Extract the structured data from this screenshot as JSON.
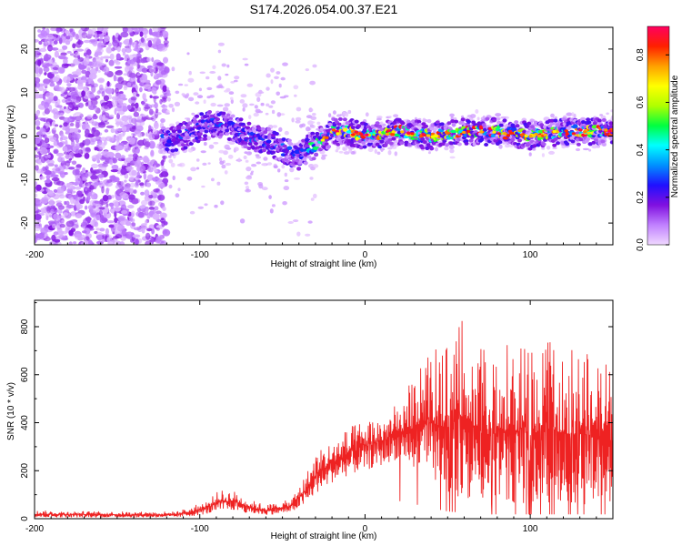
{
  "title": "S174.2026.054.00.37.E21",
  "chart_data": [
    {
      "type": "heatmap",
      "xlabel": "Height of straight line (km)",
      "ylabel": "Frequency (Hz)",
      "xlim": [
        -200,
        150
      ],
      "ylim": [
        -25,
        25
      ],
      "xticks": [
        -200,
        -100,
        0,
        100
      ],
      "yticks": [
        -20,
        -10,
        0,
        10,
        20
      ],
      "colorbar": {
        "label": "Normalized spectral amplitude",
        "range": [
          0,
          0.92
        ],
        "ticks": [
          0.0,
          0.2,
          0.4,
          0.6,
          0.8
        ],
        "colormap": [
          "#f0d8ff",
          "#c080ff",
          "#8010e0",
          "#2010ff",
          "#0090ff",
          "#00ffff",
          "#00ff40",
          "#b0ff00",
          "#ffff00",
          "#ffa000",
          "#ff2000",
          "#ff0060"
        ]
      },
      "ridge": {
        "x": [
          -120,
          -110,
          -100,
          -90,
          -80,
          -70,
          -60,
          -50,
          -40,
          -35,
          -30,
          -20,
          -10,
          0,
          20,
          40,
          60,
          80,
          100,
          120,
          150
        ],
        "y": [
          -1,
          0,
          2,
          3,
          2,
          0,
          -1,
          -3,
          -5,
          -3,
          -2,
          1,
          1,
          0,
          1,
          0,
          1,
          1,
          0,
          1,
          1
        ]
      }
    },
    {
      "type": "line",
      "xlabel": "Height of straight line (km)",
      "ylabel": "SNR (10 * v/v)",
      "xlim": [
        -200,
        150
      ],
      "ylim": [
        0,
        910
      ],
      "xticks": [
        -200,
        -100,
        0,
        100
      ],
      "yticks": [
        0,
        200,
        400,
        600,
        800
      ],
      "series": [
        {
          "name": "SNR",
          "color": "#ee2222",
          "envelope_x": [
            -200,
            -150,
            -115,
            -105,
            -95,
            -88,
            -80,
            -75,
            -70,
            -60,
            -45,
            -35,
            -30,
            -20,
            -10,
            0,
            10,
            20,
            30,
            40,
            50,
            60,
            70,
            80,
            90,
            100,
            110,
            120,
            130,
            140,
            150
          ],
          "envelope_low": [
            5,
            5,
            5,
            10,
            20,
            30,
            35,
            30,
            20,
            15,
            25,
            60,
            100,
            150,
            180,
            200,
            220,
            250,
            200,
            150,
            100,
            80,
            60,
            60,
            60,
            60,
            60,
            60,
            60,
            60,
            60
          ],
          "envelope_high": [
            35,
            30,
            30,
            50,
            80,
            120,
            120,
            100,
            80,
            60,
            80,
            200,
            280,
            330,
            380,
            420,
            440,
            480,
            600,
            700,
            720,
            860,
            720,
            700,
            750,
            700,
            760,
            720,
            700,
            680,
            650
          ]
        }
      ]
    }
  ]
}
